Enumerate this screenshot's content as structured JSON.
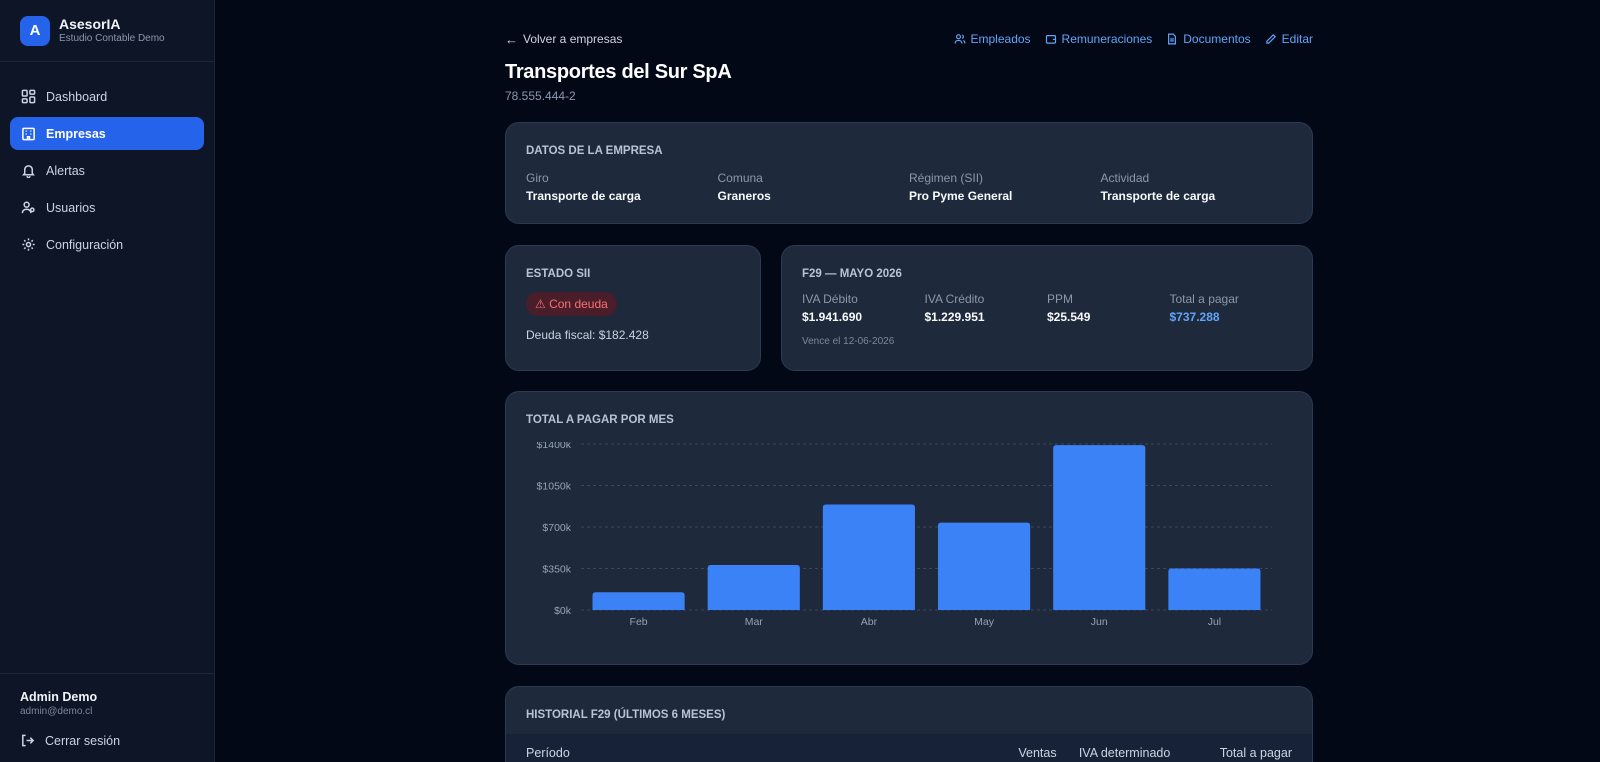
{
  "brand": {
    "logo_letter": "A",
    "name": "AsesorIA",
    "subtitle": "Estudio Contable Demo"
  },
  "sidebar": {
    "items": [
      {
        "label": "Dashboard",
        "icon": "dashboard-icon",
        "active": false
      },
      {
        "label": "Empresas",
        "icon": "building-icon",
        "active": true
      },
      {
        "label": "Alertas",
        "icon": "bell-icon",
        "active": false
      },
      {
        "label": "Usuarios",
        "icon": "users-icon",
        "active": false
      },
      {
        "label": "Configuración",
        "icon": "gear-icon",
        "active": false
      }
    ],
    "user": {
      "name": "Admin Demo",
      "email": "admin@demo.cl"
    },
    "logout_label": "Cerrar sesión"
  },
  "topbar": {
    "back_label": "Volver a empresas",
    "actions": [
      {
        "label": "Empleados",
        "icon": "users-icon"
      },
      {
        "label": "Remuneraciones",
        "icon": "wallet-icon"
      },
      {
        "label": "Documentos",
        "icon": "document-icon"
      },
      {
        "label": "Editar",
        "icon": "pencil-icon"
      }
    ]
  },
  "company": {
    "name": "Transportes del Sur SpA",
    "rut": "78.555.444-2"
  },
  "datos": {
    "title": "DATOS DE LA EMPRESA",
    "fields": [
      {
        "label": "Giro",
        "value": "Transporte de carga"
      },
      {
        "label": "Comuna",
        "value": "Graneros"
      },
      {
        "label": "Régimen (SII)",
        "value": "Pro Pyme General"
      },
      {
        "label": "Actividad",
        "value": "Transporte de carga"
      }
    ]
  },
  "estado_sii": {
    "title": "ESTADO SII",
    "badge": "⚠ Con deuda",
    "deuda": "Deuda fiscal: $182.428"
  },
  "f29": {
    "title": "F29 — MAYO 2026",
    "fields": [
      {
        "label": "IVA Débito",
        "value": "$1.941.690"
      },
      {
        "label": "IVA Crédito",
        "value": "$1.229.951"
      },
      {
        "label": "PPM",
        "value": "$25.549"
      },
      {
        "label": "Total a pagar",
        "value": "$737.288"
      }
    ],
    "vence": "Vence el 12-06-2026"
  },
  "chart_card": {
    "title": "TOTAL A PAGAR POR MES"
  },
  "chart_data": {
    "type": "bar",
    "categories": [
      "Feb",
      "Mar",
      "Abr",
      "May",
      "Jun",
      "Jul"
    ],
    "values": [
      150000,
      380000,
      890000,
      737288,
      1390000,
      350000
    ],
    "yticks": [
      "$0k",
      "$350k",
      "$700k",
      "$1050k",
      "$1400k"
    ],
    "ylim": [
      0,
      1400000
    ],
    "grid": true,
    "bar_color": "#3b82f6"
  },
  "historial": {
    "title": "HISTORIAL F29 (ÚLTIMOS 6 MESES)",
    "columns": [
      "Período",
      "Ventas",
      "IVA determinado",
      "Total a pagar"
    ]
  },
  "colors": {
    "accent": "#2563eb",
    "link": "#60a5fa",
    "danger": "#f87171",
    "background": "#030817"
  }
}
